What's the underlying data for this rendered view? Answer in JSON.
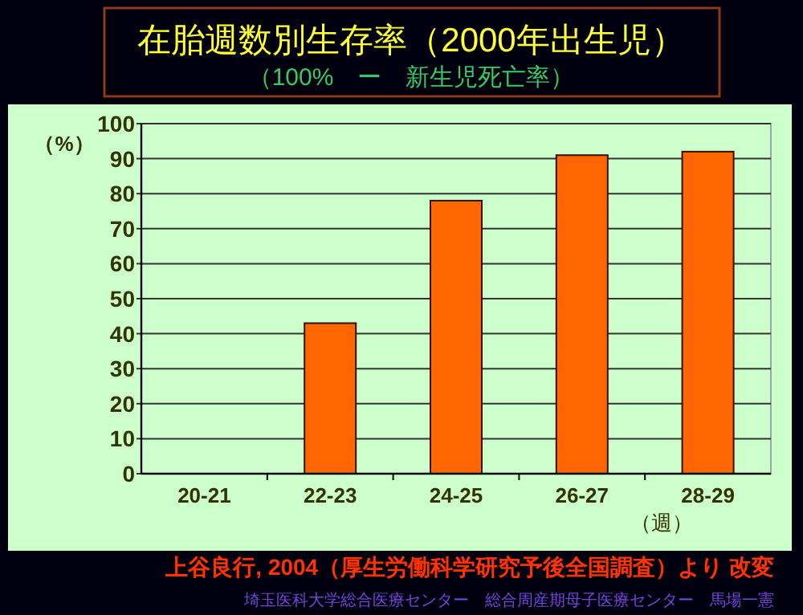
{
  "chart_data": {
    "type": "bar",
    "title": "在胎週数別生存率（2000年出生児）",
    "subtitle": "（100%　ー　新生児死亡率）",
    "xlabel": "（週）",
    "ylabel": "（%）",
    "categories": [
      "20-21",
      "22-23",
      "24-25",
      "26-27",
      "28-29"
    ],
    "values": [
      0,
      43,
      78,
      91,
      92
    ],
    "color": "#ff6600",
    "ylim": [
      0,
      100
    ],
    "yticks": [
      0,
      10,
      20,
      30,
      40,
      50,
      60,
      70,
      80,
      90,
      100
    ],
    "grid": "y",
    "annotations": [
      "上谷良行, 2004（厚生労働科学研究予後全国調査）より 改変",
      "埼玉医科大学総合医療センター　総合周産期母子医療センター　馬場一憲"
    ]
  }
}
